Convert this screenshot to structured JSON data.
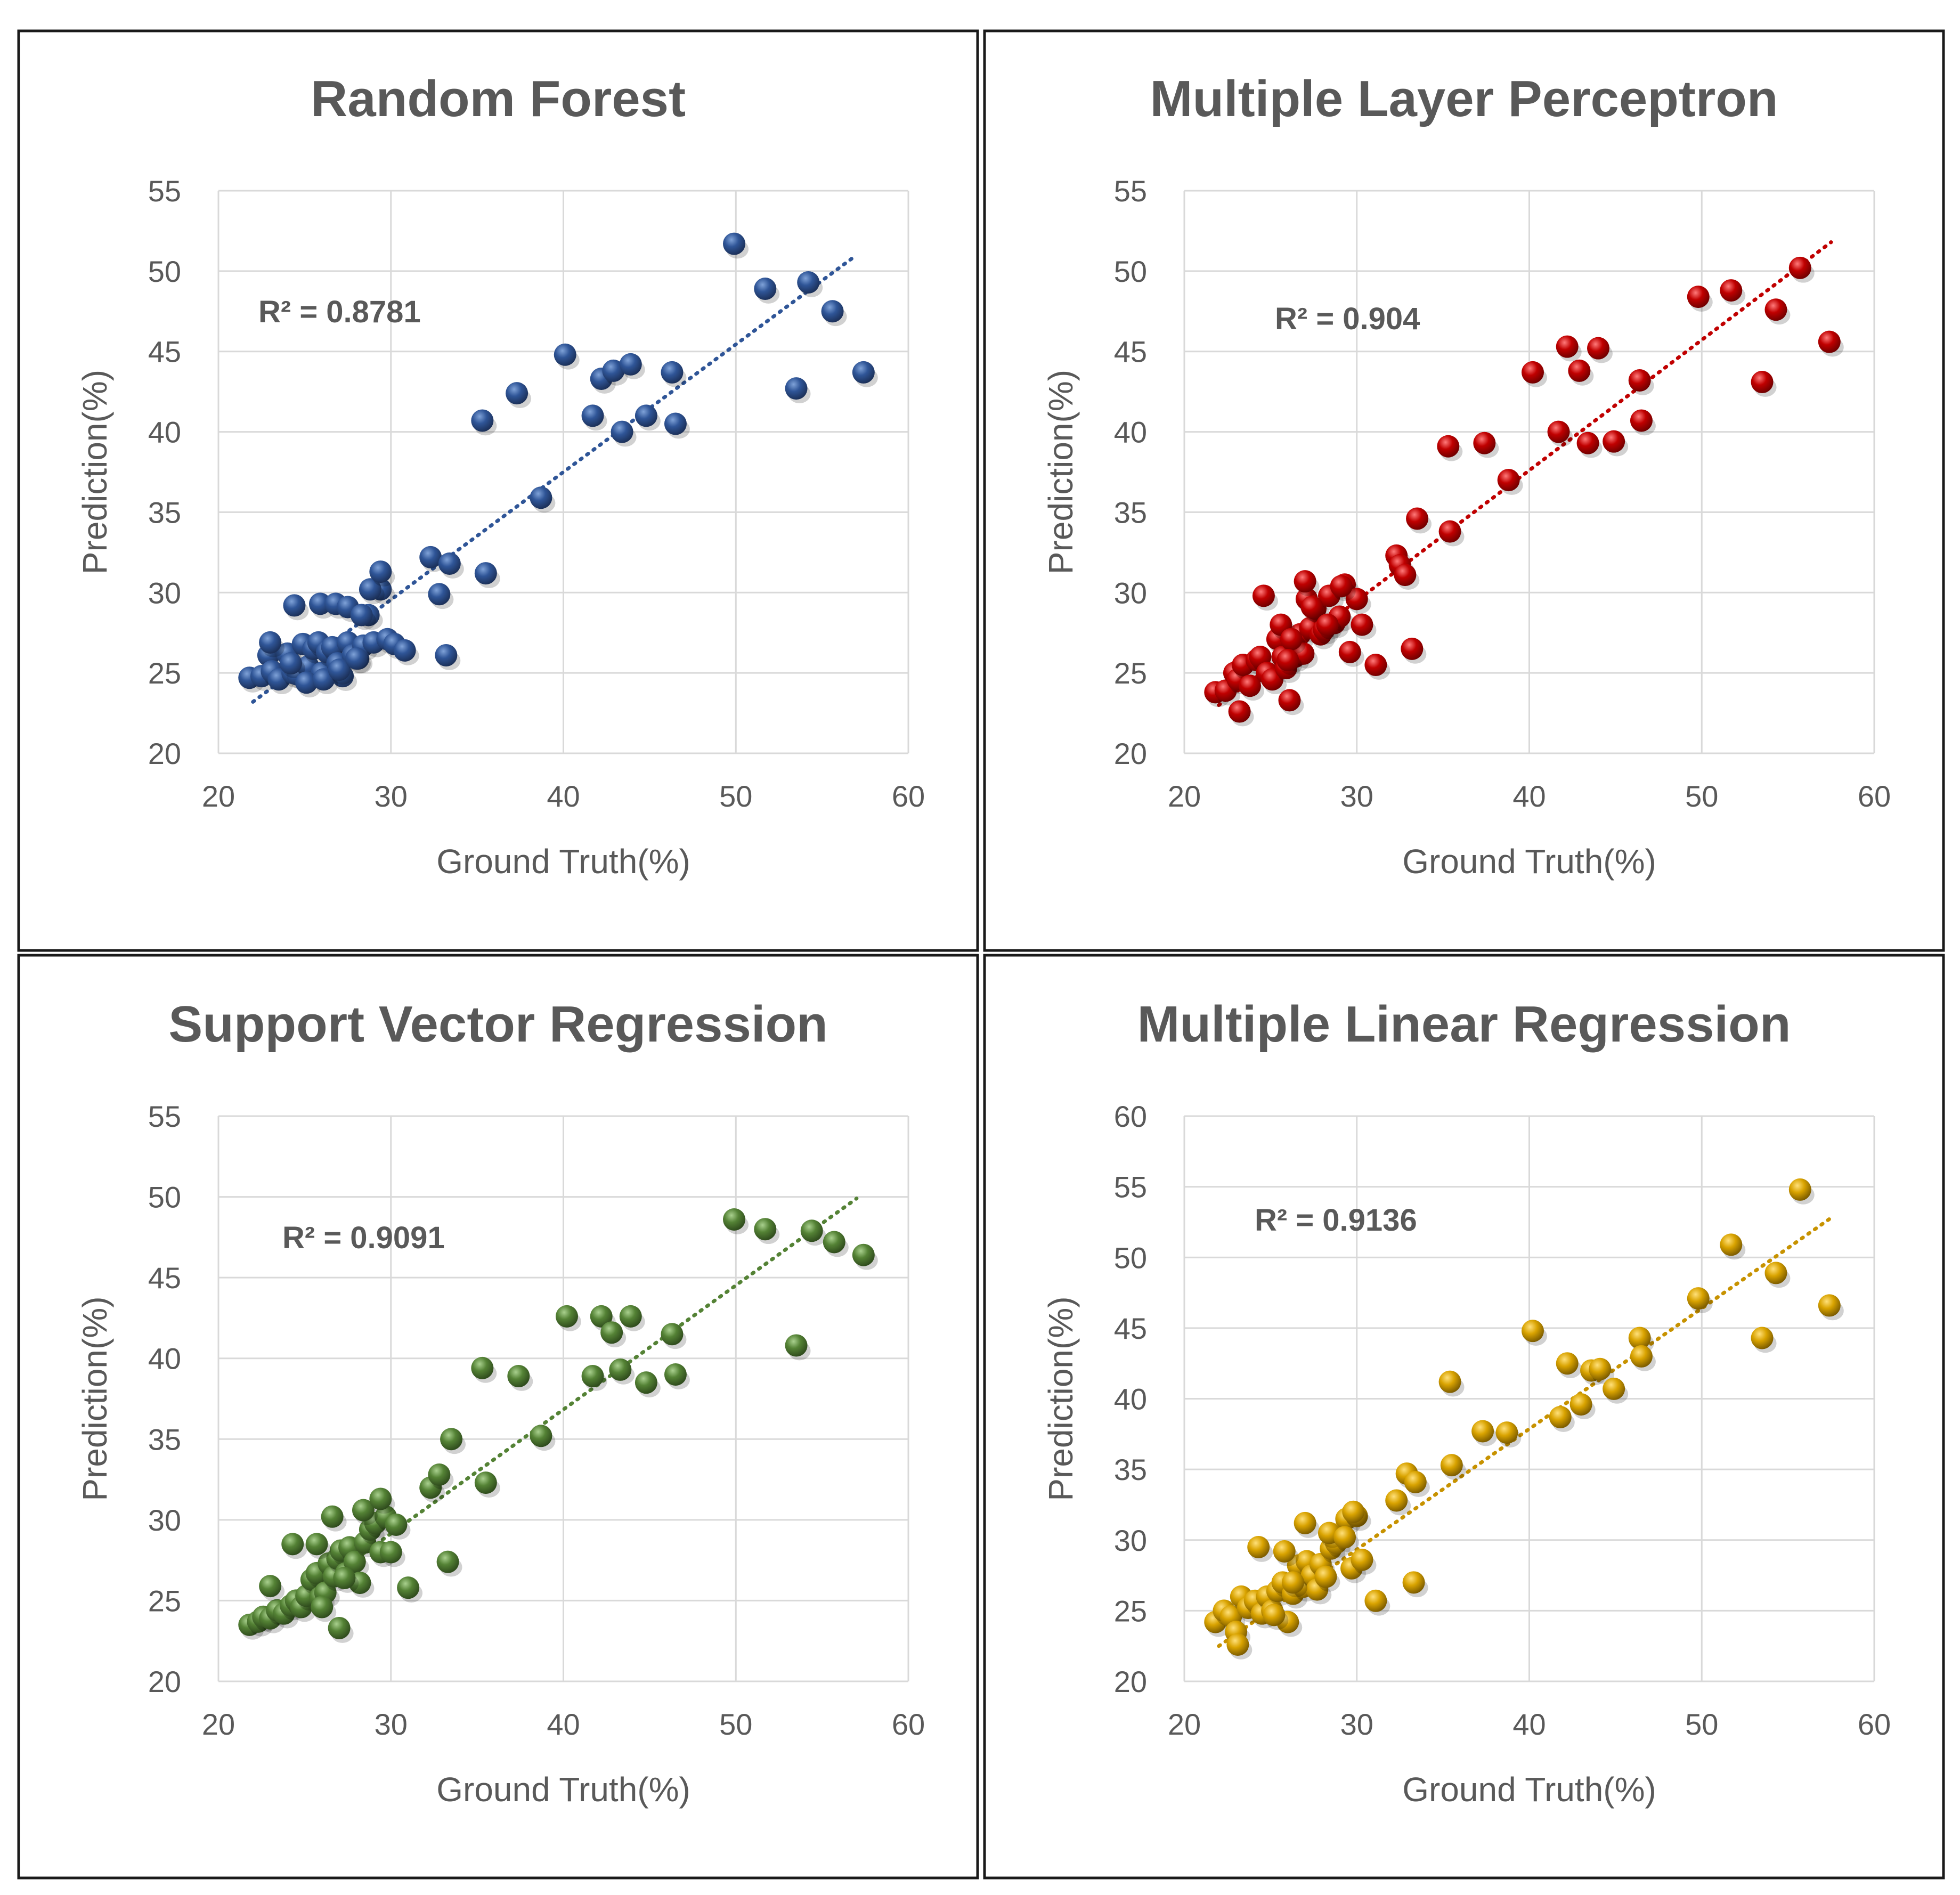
{
  "chart_data": [
    {
      "type": "scatter",
      "title": "Random Forest",
      "xlabel": "Ground Truth(%)",
      "ylabel": "Prediction(%)",
      "xlim": [
        20,
        60
      ],
      "ylim": [
        20,
        55
      ],
      "xticks": [
        "20",
        "30",
        "40",
        "50",
        "60"
      ],
      "yticks": [
        "20",
        "25",
        "30",
        "35",
        "40",
        "45",
        "50",
        "55"
      ],
      "r2_label": "R² = 0.8781",
      "trendline": {
        "x": [
          22,
          57
        ],
        "y": [
          23.2,
          51.0
        ]
      },
      "colors": {
        "marker": "#2f5597",
        "marker_light": "#7fa2d8",
        "marker_dark": "#1b2f57",
        "trend": "#2f5597"
      },
      "series": [
        {
          "name": "Random Forest",
          "x": [
            21.8,
            22.5,
            22.9,
            23.1,
            23.5,
            24.0,
            24.3,
            24.6,
            24.9,
            25.2,
            25.5,
            25.8,
            26.0,
            26.3,
            26.6,
            26.9,
            27.2,
            27.5,
            27.8,
            28.1,
            28.4,
            28.7,
            29.0,
            29.4,
            29.8,
            30.2,
            30.8,
            24.4,
            25.9,
            26.8,
            27.5,
            28.3,
            28.8,
            29.4,
            23.0,
            24.2,
            25.1,
            26.1,
            27.0,
            28.0,
            32.3,
            32.8,
            33.2,
            33.4,
            35.3,
            35.5,
            38.7,
            37.3,
            40.1,
            41.7,
            42.2,
            42.9,
            43.9,
            43.4,
            44.8,
            46.3,
            46.5,
            49.9,
            51.7,
            54.2,
            55.6,
            53.5,
            57.4
          ],
          "y": [
            24.7,
            24.8,
            26.1,
            25.1,
            24.6,
            26.2,
            25.0,
            24.9,
            26.8,
            25.4,
            26.5,
            26.9,
            25.0,
            26.3,
            26.6,
            25.6,
            24.8,
            26.9,
            26.1,
            25.9,
            26.7,
            28.6,
            26.9,
            30.2,
            27.1,
            26.8,
            26.4,
            29.2,
            29.3,
            29.3,
            29.1,
            28.6,
            30.2,
            31.3,
            26.9,
            25.6,
            24.4,
            24.6,
            25.2,
            25.9,
            32.2,
            29.9,
            26.1,
            31.8,
            40.7,
            31.2,
            35.9,
            42.4,
            44.8,
            41.0,
            43.3,
            43.8,
            44.2,
            40.0,
            41.0,
            43.7,
            40.5,
            51.7,
            48.9,
            49.3,
            47.5,
            42.7,
            43.7
          ]
        }
      ]
    },
    {
      "type": "scatter",
      "title": "Multiple Layer Perceptron",
      "xlabel": "Ground Truth(%)",
      "ylabel": "Prediction(%)",
      "xlim": [
        20,
        60
      ],
      "ylim": [
        20,
        55
      ],
      "xticks": [
        "20",
        "30",
        "40",
        "50",
        "60"
      ],
      "yticks": [
        "20",
        "25",
        "30",
        "35",
        "40",
        "45",
        "50",
        "55"
      ],
      "r2_label": "R² = 0.904",
      "trendline": {
        "x": [
          22,
          57.5
        ],
        "y": [
          23.0,
          51.8
        ]
      },
      "colors": {
        "marker": "#c00000",
        "marker_light": "#ff7a7a",
        "marker_dark": "#6e0000",
        "trend": "#c00000"
      },
      "series": [
        {
          "name": "Multiple Layer Perceptron",
          "x": [
            21.8,
            22.4,
            22.9,
            23.1,
            23.4,
            23.8,
            24.2,
            24.4,
            24.8,
            25.1,
            25.4,
            25.7,
            25.9,
            26.1,
            26.4,
            26.7,
            26.9,
            27.1,
            27.3,
            27.6,
            27.9,
            28.1,
            28.4,
            28.7,
            29.0,
            29.3,
            29.6,
            30.0,
            30.3,
            31.1,
            25.6,
            26.2,
            27.4,
            28.3,
            29.1,
            26.0,
            27.0,
            23.2,
            24.6,
            32.3,
            32.5,
            32.8,
            33.2,
            33.5,
            35.4,
            35.3,
            37.4,
            38.8,
            40.2,
            41.7,
            42.2,
            42.9,
            43.4,
            44.0,
            44.9,
            46.4,
            46.5,
            49.8,
            51.7,
            53.5,
            54.3,
            55.7,
            57.4
          ],
          "y": [
            23.8,
            23.9,
            25.0,
            24.6,
            25.5,
            24.2,
            25.8,
            26.0,
            25.0,
            24.6,
            27.1,
            26.0,
            25.3,
            23.3,
            26.0,
            27.4,
            26.2,
            29.6,
            27.8,
            29.0,
            27.4,
            27.7,
            29.8,
            28.1,
            28.5,
            30.5,
            26.3,
            29.6,
            28.0,
            25.5,
            28.0,
            27.1,
            29.1,
            28.0,
            30.4,
            25.8,
            30.7,
            22.6,
            29.8,
            32.3,
            31.7,
            31.1,
            26.5,
            34.6,
            33.8,
            39.1,
            39.3,
            37.0,
            43.7,
            40.0,
            45.3,
            43.8,
            39.3,
            45.2,
            39.4,
            43.2,
            40.7,
            48.4,
            48.8,
            43.1,
            47.6,
            50.2,
            45.6
          ]
        }
      ]
    },
    {
      "type": "scatter",
      "title": "Support Vector Regression",
      "xlabel": "Ground Truth(%)",
      "ylabel": "Prediction(%)",
      "xlim": [
        20,
        60
      ],
      "ylim": [
        20,
        55
      ],
      "xticks": [
        "20",
        "30",
        "40",
        "50",
        "60"
      ],
      "yticks": [
        "20",
        "25",
        "30",
        "35",
        "40",
        "45",
        "50",
        "55"
      ],
      "r2_label": "R² = 0.9091",
      "trendline": {
        "x": [
          22,
          57
        ],
        "y": [
          23.0,
          49.9
        ]
      },
      "colors": {
        "marker": "#548235",
        "marker_light": "#a9d08e",
        "marker_dark": "#2e4a1c",
        "trend": "#548235"
      },
      "series": [
        {
          "name": "Support Vector Regression",
          "x": [
            21.8,
            22.3,
            22.6,
            23.0,
            23.4,
            23.8,
            24.2,
            24.5,
            24.8,
            25.1,
            25.4,
            25.7,
            25.9,
            26.2,
            26.4,
            26.7,
            26.9,
            27.1,
            27.4,
            27.6,
            27.9,
            28.2,
            28.5,
            28.8,
            29.1,
            29.4,
            29.7,
            30.0,
            30.3,
            31.0,
            24.3,
            25.7,
            26.6,
            27.3,
            28.4,
            29.4,
            26.0,
            27.0,
            23.0,
            32.3,
            32.8,
            33.3,
            33.5,
            35.3,
            35.5,
            37.4,
            38.7,
            40.2,
            41.7,
            42.2,
            42.8,
            43.3,
            43.9,
            44.8,
            46.3,
            46.5,
            49.9,
            51.7,
            53.5,
            54.4,
            55.7,
            57.4
          ],
          "y": [
            23.5,
            23.7,
            24.0,
            23.9,
            24.4,
            24.2,
            24.7,
            25.0,
            24.6,
            25.3,
            26.3,
            26.7,
            25.2,
            25.5,
            27.3,
            26.5,
            27.6,
            28.1,
            26.7,
            28.3,
            27.4,
            26.1,
            28.6,
            29.4,
            29.8,
            28.0,
            30.2,
            28.0,
            29.7,
            25.8,
            28.5,
            28.5,
            30.2,
            26.4,
            30.6,
            31.3,
            24.6,
            23.3,
            25.9,
            32.0,
            32.8,
            27.4,
            35.0,
            39.4,
            32.3,
            38.9,
            35.2,
            42.6,
            38.9,
            42.6,
            41.6,
            39.3,
            42.6,
            38.5,
            41.5,
            39.0,
            48.6,
            48.0,
            40.8,
            47.9,
            47.2,
            46.4
          ]
        }
      ]
    },
    {
      "type": "scatter",
      "title": "Multiple Linear Regression",
      "xlabel": "Ground Truth(%)",
      "ylabel": "Prediction(%)",
      "xlim": [
        20,
        60
      ],
      "ylim": [
        20,
        60
      ],
      "xticks": [
        "20",
        "30",
        "40",
        "50",
        "60"
      ],
      "yticks": [
        "20",
        "25",
        "30",
        "35",
        "40",
        "45",
        "50",
        "55",
        "60"
      ],
      "r2_label": "R² = 0.9136",
      "trendline": {
        "x": [
          22,
          57.5
        ],
        "y": [
          22.5,
          52.8
        ]
      },
      "colors": {
        "marker": "#d9a300",
        "marker_light": "#ffe07a",
        "marker_dark": "#7a5a00",
        "trend": "#c79200"
      },
      "series": [
        {
          "name": "Multiple Linear Regression",
          "x": [
            21.8,
            22.3,
            22.7,
            23.0,
            23.3,
            23.7,
            24.1,
            24.5,
            24.8,
            25.1,
            25.4,
            25.7,
            26.0,
            26.3,
            26.6,
            26.9,
            27.1,
            27.4,
            27.7,
            27.9,
            28.2,
            28.5,
            28.8,
            29.1,
            29.4,
            29.7,
            30.0,
            30.3,
            31.1,
            24.3,
            25.8,
            27.0,
            28.4,
            29.3,
            29.8,
            23.1,
            25.2,
            26.3,
            32.3,
            32.9,
            33.3,
            33.4,
            35.5,
            35.4,
            37.3,
            38.7,
            40.2,
            41.8,
            42.2,
            43.0,
            43.6,
            44.1,
            44.9,
            46.4,
            46.5,
            49.8,
            51.7,
            53.5,
            54.3,
            55.7,
            57.4
          ],
          "y": [
            24.2,
            25.0,
            24.6,
            23.5,
            26.0,
            25.2,
            25.7,
            24.8,
            26.0,
            25.0,
            26.4,
            27.0,
            24.2,
            26.2,
            28.2,
            26.7,
            28.5,
            27.5,
            26.5,
            28.3,
            27.4,
            29.4,
            29.8,
            30.5,
            31.5,
            28.0,
            31.7,
            28.6,
            25.7,
            29.5,
            29.2,
            31.2,
            30.5,
            30.2,
            32.0,
            22.6,
            24.7,
            27.0,
            32.8,
            34.7,
            27.0,
            34.1,
            35.3,
            41.2,
            37.7,
            37.6,
            44.8,
            38.7,
            42.5,
            39.6,
            42.0,
            42.1,
            40.7,
            44.3,
            43.0,
            47.1,
            50.9,
            44.3,
            48.9,
            54.8,
            46.6
          ]
        }
      ]
    }
  ]
}
